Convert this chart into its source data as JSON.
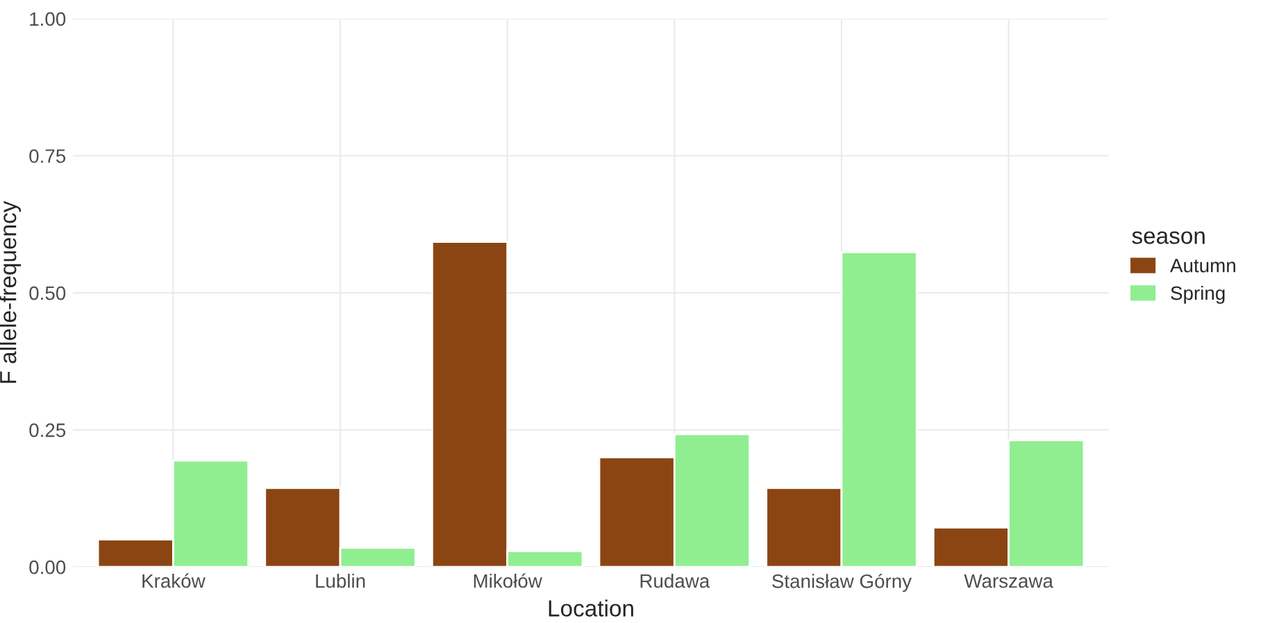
{
  "chart_data": {
    "type": "bar",
    "xlabel": "Location",
    "ylabel": "F allele-frequency",
    "legend_title": "season",
    "categories": [
      "Kraków",
      "Lublin",
      "Mikołów",
      "Rudawa",
      "Stanisław Górny",
      "Warszawa"
    ],
    "series": [
      {
        "name": "Autumn",
        "color": "#8b4513",
        "values": [
          0.05,
          0.144,
          0.593,
          0.2,
          0.144,
          0.072
        ]
      },
      {
        "name": "Spring",
        "color": "#90ee90",
        "values": [
          0.194,
          0.035,
          0.029,
          0.242,
          0.574,
          0.231
        ]
      }
    ],
    "ylim": [
      0,
      1.0
    ],
    "yticks": [
      {
        "value": 0,
        "label": "0.00"
      },
      {
        "value": 0.25,
        "label": "0.25"
      },
      {
        "value": 0.5,
        "label": "0.50"
      },
      {
        "value": 0.75,
        "label": "0.75"
      },
      {
        "value": 1.0,
        "label": "1.00"
      }
    ],
    "grid": true,
    "legend": "right"
  }
}
